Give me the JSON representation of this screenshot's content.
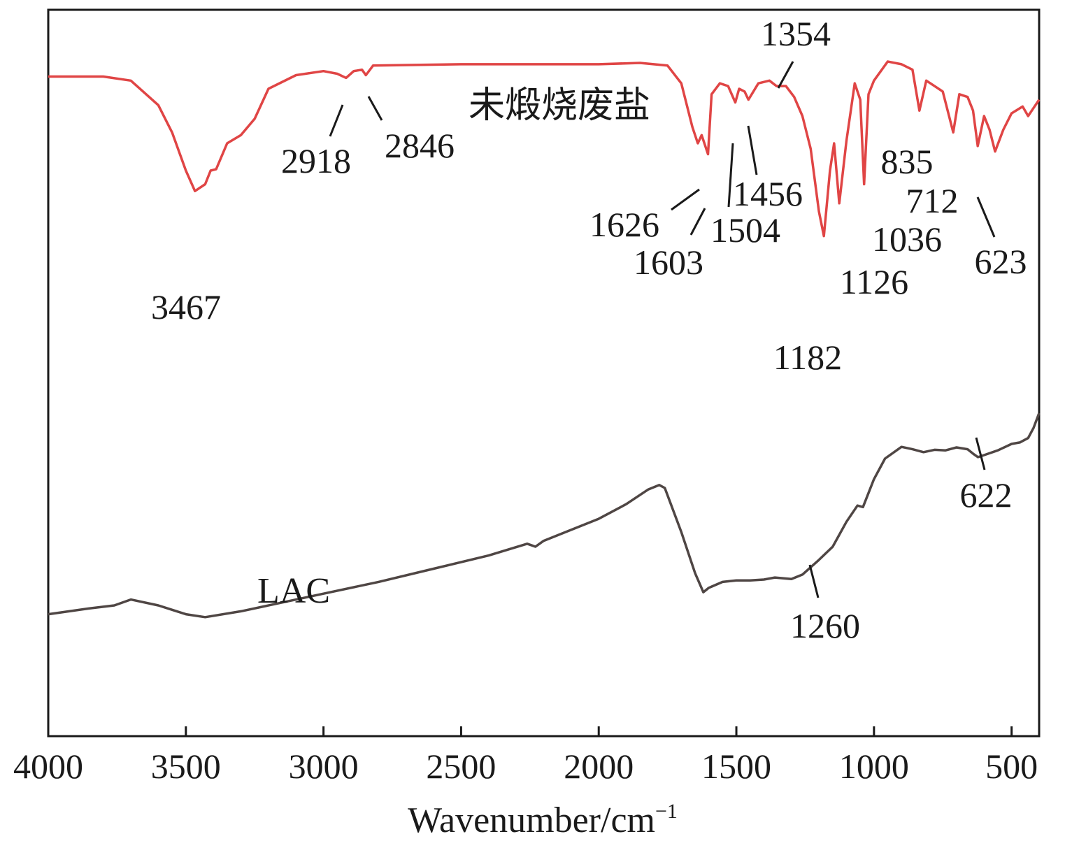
{
  "chart_data": {
    "type": "line",
    "title": "",
    "xlabel": "Wavenumber/cm",
    "xlabel_superscript": "−1",
    "ylabel": "",
    "xlim": [
      4000,
      400
    ],
    "x_ticks": [
      4000,
      3500,
      3000,
      2500,
      2000,
      1500,
      1000,
      500
    ],
    "x_tick_labels": [
      "4000",
      "3500",
      "3000",
      "2500",
      "2000",
      "1500",
      "1000",
      "500"
    ],
    "grid": false,
    "legend": "none",
    "y_axis_numbered": false,
    "series": [
      {
        "name": "未煅烧废盐",
        "color": "#e04545",
        "points": [
          [
            4000,
            0.055
          ],
          [
            3800,
            0.055
          ],
          [
            3700,
            0.07
          ],
          [
            3600,
            0.16
          ],
          [
            3550,
            0.26
          ],
          [
            3500,
            0.4
          ],
          [
            3467,
            0.475
          ],
          [
            3430,
            0.45
          ],
          [
            3410,
            0.4
          ],
          [
            3390,
            0.395
          ],
          [
            3350,
            0.3
          ],
          [
            3300,
            0.27
          ],
          [
            3250,
            0.21
          ],
          [
            3200,
            0.1
          ],
          [
            3100,
            0.05
          ],
          [
            3000,
            0.035
          ],
          [
            2950,
            0.045
          ],
          [
            2918,
            0.06
          ],
          [
            2890,
            0.035
          ],
          [
            2860,
            0.03
          ],
          [
            2846,
            0.05
          ],
          [
            2820,
            0.015
          ],
          [
            2500,
            0.01
          ],
          [
            2000,
            0.01
          ],
          [
            1850,
            0.005
          ],
          [
            1750,
            0.015
          ],
          [
            1700,
            0.08
          ],
          [
            1660,
            0.24
          ],
          [
            1640,
            0.3
          ],
          [
            1626,
            0.27
          ],
          [
            1603,
            0.34
          ],
          [
            1590,
            0.12
          ],
          [
            1560,
            0.08
          ],
          [
            1530,
            0.09
          ],
          [
            1504,
            0.15
          ],
          [
            1490,
            0.1
          ],
          [
            1470,
            0.11
          ],
          [
            1456,
            0.14
          ],
          [
            1420,
            0.08
          ],
          [
            1380,
            0.07
          ],
          [
            1354,
            0.09
          ],
          [
            1320,
            0.09
          ],
          [
            1290,
            0.13
          ],
          [
            1260,
            0.2
          ],
          [
            1230,
            0.32
          ],
          [
            1200,
            0.55
          ],
          [
            1182,
            0.64
          ],
          [
            1160,
            0.4
          ],
          [
            1145,
            0.3
          ],
          [
            1126,
            0.52
          ],
          [
            1100,
            0.29
          ],
          [
            1070,
            0.08
          ],
          [
            1050,
            0.14
          ],
          [
            1036,
            0.45
          ],
          [
            1020,
            0.12
          ],
          [
            1000,
            0.07
          ],
          [
            950,
            0.0
          ],
          [
            900,
            0.01
          ],
          [
            860,
            0.03
          ],
          [
            835,
            0.18
          ],
          [
            810,
            0.07
          ],
          [
            780,
            0.09
          ],
          [
            750,
            0.11
          ],
          [
            712,
            0.26
          ],
          [
            690,
            0.12
          ],
          [
            660,
            0.13
          ],
          [
            640,
            0.18
          ],
          [
            623,
            0.31
          ],
          [
            600,
            0.2
          ],
          [
            580,
            0.25
          ],
          [
            560,
            0.33
          ],
          [
            530,
            0.25
          ],
          [
            500,
            0.19
          ],
          [
            460,
            0.165
          ],
          [
            440,
            0.2
          ],
          [
            420,
            0.17
          ],
          [
            400,
            0.14
          ]
        ]
      },
      {
        "name": "LAC",
        "color": "#4f4644",
        "points": [
          [
            4000,
            0.83
          ],
          [
            3850,
            0.81
          ],
          [
            3760,
            0.8
          ],
          [
            3700,
            0.78
          ],
          [
            3600,
            0.8
          ],
          [
            3500,
            0.83
          ],
          [
            3430,
            0.84
          ],
          [
            3300,
            0.82
          ],
          [
            3150,
            0.79
          ],
          [
            3000,
            0.76
          ],
          [
            2800,
            0.72
          ],
          [
            2600,
            0.675
          ],
          [
            2400,
            0.63
          ],
          [
            2260,
            0.59
          ],
          [
            2230,
            0.6
          ],
          [
            2200,
            0.58
          ],
          [
            2000,
            0.505
          ],
          [
            1900,
            0.455
          ],
          [
            1820,
            0.405
          ],
          [
            1780,
            0.39
          ],
          [
            1760,
            0.4
          ],
          [
            1700,
            0.55
          ],
          [
            1650,
            0.69
          ],
          [
            1620,
            0.755
          ],
          [
            1600,
            0.74
          ],
          [
            1550,
            0.72
          ],
          [
            1500,
            0.715
          ],
          [
            1450,
            0.715
          ],
          [
            1400,
            0.712
          ],
          [
            1360,
            0.705
          ],
          [
            1300,
            0.71
          ],
          [
            1260,
            0.695
          ],
          [
            1200,
            0.645
          ],
          [
            1150,
            0.6
          ],
          [
            1100,
            0.515
          ],
          [
            1060,
            0.46
          ],
          [
            1040,
            0.465
          ],
          [
            1000,
            0.37
          ],
          [
            960,
            0.3
          ],
          [
            900,
            0.26
          ],
          [
            860,
            0.268
          ],
          [
            820,
            0.278
          ],
          [
            780,
            0.27
          ],
          [
            740,
            0.272
          ],
          [
            700,
            0.262
          ],
          [
            660,
            0.268
          ],
          [
            640,
            0.283
          ],
          [
            622,
            0.295
          ],
          [
            600,
            0.288
          ],
          [
            550,
            0.272
          ],
          [
            500,
            0.25
          ],
          [
            470,
            0.245
          ],
          [
            440,
            0.23
          ],
          [
            420,
            0.195
          ],
          [
            400,
            0.145
          ]
        ]
      }
    ],
    "annotations": [
      {
        "text": "3467",
        "x": 3467,
        "series": 0,
        "leader": false
      },
      {
        "text": "2918",
        "x": 2918,
        "series": 0,
        "leader": true
      },
      {
        "text": "2846",
        "x": 2846,
        "series": 0,
        "leader": true
      },
      {
        "text": "1354",
        "x": 1354,
        "series": 0,
        "leader": true
      },
      {
        "text": "1626",
        "x": 1626,
        "series": 0,
        "leader": true
      },
      {
        "text": "1603",
        "x": 1603,
        "series": 0,
        "leader": true
      },
      {
        "text": "1504",
        "x": 1504,
        "series": 0,
        "leader": true
      },
      {
        "text": "1456",
        "x": 1456,
        "series": 0,
        "leader": true
      },
      {
        "text": "1182",
        "x": 1182,
        "series": 0,
        "leader": false
      },
      {
        "text": "1126",
        "x": 1126,
        "series": 0,
        "leader": false
      },
      {
        "text": "1036",
        "x": 1036,
        "series": 0,
        "leader": false
      },
      {
        "text": "835",
        "x": 835,
        "series": 0,
        "leader": false
      },
      {
        "text": "712",
        "x": 712,
        "series": 0,
        "leader": false
      },
      {
        "text": "623",
        "x": 623,
        "series": 0,
        "leader": true
      },
      {
        "text": "622",
        "x": 622,
        "series": 1,
        "leader": true
      },
      {
        "text": "1260",
        "x": 1260,
        "series": 1,
        "leader": true
      }
    ]
  }
}
